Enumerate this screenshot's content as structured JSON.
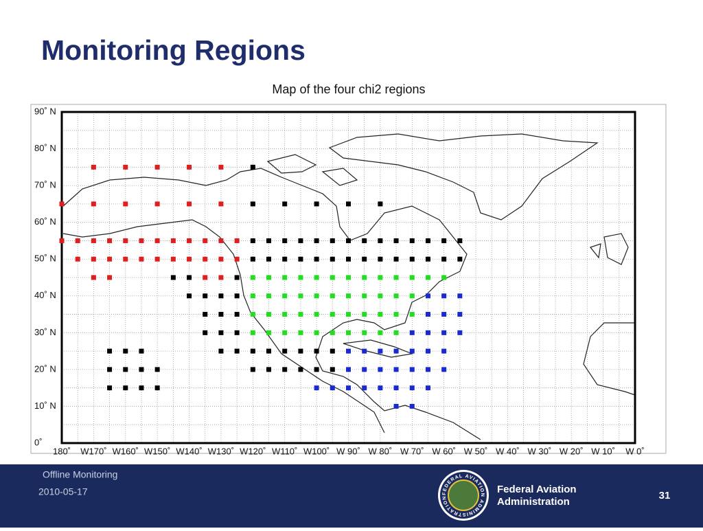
{
  "slide": {
    "title": "Monitoring Regions"
  },
  "map": {
    "title": "Map of the four chi2 regions",
    "xlim": [
      180,
      0
    ],
    "ylim": [
      0,
      90
    ],
    "xticks": [
      {
        "value": 180,
        "label": "180˚"
      },
      {
        "value": 170,
        "label": "W170˚"
      },
      {
        "value": 160,
        "label": "W160˚"
      },
      {
        "value": 150,
        "label": "W150˚"
      },
      {
        "value": 140,
        "label": "W140˚"
      },
      {
        "value": 130,
        "label": "W130˚"
      },
      {
        "value": 120,
        "label": "W120˚"
      },
      {
        "value": 110,
        "label": "W110˚"
      },
      {
        "value": 100,
        "label": "W100˚"
      },
      {
        "value": 90,
        "label": "W 90˚"
      },
      {
        "value": 80,
        "label": "W 80˚"
      },
      {
        "value": 70,
        "label": "W 70˚"
      },
      {
        "value": 60,
        "label": "W 60˚"
      },
      {
        "value": 50,
        "label": "W 50˚"
      },
      {
        "value": 40,
        "label": "W 40˚"
      },
      {
        "value": 30,
        "label": "W 30˚"
      },
      {
        "value": 20,
        "label": "W 20˚"
      },
      {
        "value": 10,
        "label": "W 10˚"
      },
      {
        "value": 0,
        "label": "W 0˚"
      }
    ],
    "yticks": [
      {
        "value": 0,
        "label": "0˚"
      },
      {
        "value": 10,
        "label": "10˚ N"
      },
      {
        "value": 20,
        "label": "20˚ N"
      },
      {
        "value": 30,
        "label": "30˚ N"
      },
      {
        "value": 40,
        "label": "40˚ N"
      },
      {
        "value": 50,
        "label": "50˚ N"
      },
      {
        "value": 60,
        "label": "60˚ N"
      },
      {
        "value": 70,
        "label": "70˚ N"
      },
      {
        "value": 80,
        "label": "80˚ N"
      },
      {
        "value": 90,
        "label": "90˚ N"
      }
    ],
    "grid": true,
    "regions": [
      {
        "color": "#dd1f1f",
        "points": [
          [
            170,
            75
          ],
          [
            160,
            75
          ],
          [
            150,
            75
          ],
          [
            140,
            75
          ],
          [
            130,
            75
          ],
          [
            180,
            65
          ],
          [
            170,
            65
          ],
          [
            160,
            65
          ],
          [
            150,
            65
          ],
          [
            140,
            65
          ],
          [
            130,
            65
          ],
          [
            180,
            55
          ],
          [
            175,
            55
          ],
          [
            170,
            55
          ],
          [
            165,
            55
          ],
          [
            160,
            55
          ],
          [
            155,
            55
          ],
          [
            150,
            55
          ],
          [
            145,
            55
          ],
          [
            140,
            55
          ],
          [
            135,
            55
          ],
          [
            130,
            55
          ],
          [
            125,
            55
          ],
          [
            175,
            50
          ],
          [
            170,
            50
          ],
          [
            165,
            50
          ],
          [
            160,
            50
          ],
          [
            155,
            50
          ],
          [
            150,
            50
          ],
          [
            145,
            50
          ],
          [
            140,
            50
          ],
          [
            135,
            50
          ],
          [
            130,
            50
          ],
          [
            125,
            50
          ],
          [
            170,
            45
          ],
          [
            165,
            45
          ],
          [
            135,
            45
          ],
          [
            130,
            45
          ]
        ]
      },
      {
        "color": "#000000",
        "points": [
          [
            120,
            75
          ],
          [
            120,
            65
          ],
          [
            110,
            65
          ],
          [
            100,
            65
          ],
          [
            90,
            65
          ],
          [
            80,
            65
          ],
          [
            120,
            55
          ],
          [
            115,
            55
          ],
          [
            110,
            55
          ],
          [
            105,
            55
          ],
          [
            100,
            55
          ],
          [
            95,
            55
          ],
          [
            90,
            55
          ],
          [
            85,
            55
          ],
          [
            80,
            55
          ],
          [
            75,
            55
          ],
          [
            70,
            55
          ],
          [
            65,
            55
          ],
          [
            60,
            55
          ],
          [
            55,
            55
          ],
          [
            120,
            50
          ],
          [
            115,
            50
          ],
          [
            110,
            50
          ],
          [
            105,
            50
          ],
          [
            100,
            50
          ],
          [
            95,
            50
          ],
          [
            90,
            50
          ],
          [
            85,
            50
          ],
          [
            80,
            50
          ],
          [
            75,
            50
          ],
          [
            70,
            50
          ],
          [
            65,
            50
          ],
          [
            60,
            50
          ],
          [
            55,
            50
          ],
          [
            145,
            45
          ],
          [
            140,
            45
          ],
          [
            125,
            45
          ],
          [
            140,
            40
          ],
          [
            135,
            40
          ],
          [
            130,
            40
          ],
          [
            125,
            40
          ],
          [
            135,
            35
          ],
          [
            130,
            35
          ],
          [
            125,
            35
          ],
          [
            135,
            30
          ],
          [
            130,
            30
          ],
          [
            125,
            30
          ],
          [
            165,
            25
          ],
          [
            160,
            25
          ],
          [
            155,
            25
          ],
          [
            130,
            25
          ],
          [
            125,
            25
          ],
          [
            120,
            25
          ],
          [
            115,
            25
          ],
          [
            110,
            25
          ],
          [
            105,
            25
          ],
          [
            100,
            25
          ],
          [
            95,
            25
          ],
          [
            165,
            20
          ],
          [
            160,
            20
          ],
          [
            155,
            20
          ],
          [
            150,
            20
          ],
          [
            120,
            20
          ],
          [
            115,
            20
          ],
          [
            110,
            20
          ],
          [
            105,
            20
          ],
          [
            100,
            20
          ],
          [
            95,
            20
          ],
          [
            165,
            15
          ],
          [
            160,
            15
          ],
          [
            155,
            15
          ],
          [
            150,
            15
          ]
        ]
      },
      {
        "color": "#22dd22",
        "points": [
          [
            120,
            45
          ],
          [
            115,
            45
          ],
          [
            110,
            45
          ],
          [
            105,
            45
          ],
          [
            100,
            45
          ],
          [
            95,
            45
          ],
          [
            90,
            45
          ],
          [
            85,
            45
          ],
          [
            80,
            45
          ],
          [
            75,
            45
          ],
          [
            70,
            45
          ],
          [
            65,
            45
          ],
          [
            60,
            45
          ],
          [
            120,
            40
          ],
          [
            115,
            40
          ],
          [
            110,
            40
          ],
          [
            105,
            40
          ],
          [
            100,
            40
          ],
          [
            95,
            40
          ],
          [
            90,
            40
          ],
          [
            85,
            40
          ],
          [
            80,
            40
          ],
          [
            75,
            40
          ],
          [
            70,
            40
          ],
          [
            120,
            35
          ],
          [
            115,
            35
          ],
          [
            110,
            35
          ],
          [
            105,
            35
          ],
          [
            100,
            35
          ],
          [
            95,
            35
          ],
          [
            90,
            35
          ],
          [
            85,
            35
          ],
          [
            80,
            35
          ],
          [
            75,
            35
          ],
          [
            70,
            35
          ],
          [
            120,
            30
          ],
          [
            115,
            30
          ],
          [
            110,
            30
          ],
          [
            105,
            30
          ],
          [
            100,
            30
          ],
          [
            95,
            30
          ],
          [
            90,
            30
          ],
          [
            85,
            30
          ],
          [
            80,
            30
          ],
          [
            75,
            30
          ]
        ]
      },
      {
        "color": "#1a2ad0",
        "points": [
          [
            65,
            40
          ],
          [
            60,
            40
          ],
          [
            55,
            40
          ],
          [
            65,
            35
          ],
          [
            60,
            35
          ],
          [
            55,
            35
          ],
          [
            70,
            30
          ],
          [
            65,
            30
          ],
          [
            60,
            30
          ],
          [
            55,
            30
          ],
          [
            90,
            25
          ],
          [
            85,
            25
          ],
          [
            80,
            25
          ],
          [
            75,
            25
          ],
          [
            70,
            25
          ],
          [
            65,
            25
          ],
          [
            60,
            25
          ],
          [
            90,
            20
          ],
          [
            85,
            20
          ],
          [
            80,
            20
          ],
          [
            75,
            20
          ],
          [
            70,
            20
          ],
          [
            65,
            20
          ],
          [
            60,
            20
          ],
          [
            100,
            15
          ],
          [
            95,
            15
          ],
          [
            90,
            15
          ],
          [
            85,
            15
          ],
          [
            80,
            15
          ],
          [
            75,
            15
          ],
          [
            70,
            15
          ],
          [
            65,
            15
          ],
          [
            75,
            10
          ],
          [
            70,
            10
          ]
        ]
      }
    ]
  },
  "footer": {
    "section": "Offline Monitoring",
    "date": "2010-05-17",
    "agency": "Federal Aviation Administration",
    "page": "31",
    "seal": "FEDERAL AVIATION ADMINISTRATION"
  }
}
